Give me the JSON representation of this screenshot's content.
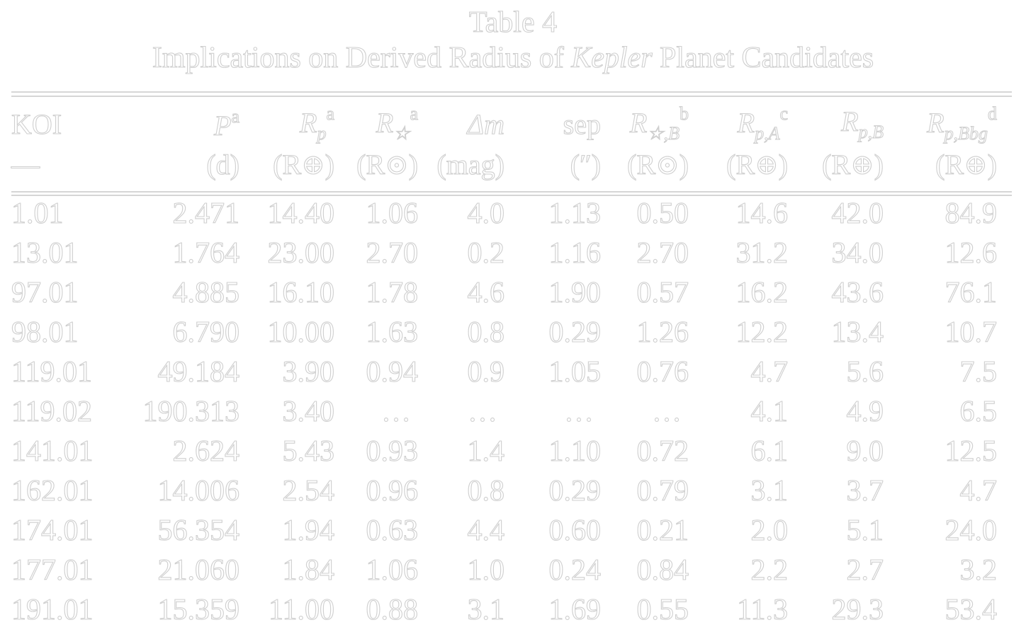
{
  "title": "Table 4",
  "subtitle_pre": "Implications on Derived Radius of ",
  "subtitle_italic": "Kepler",
  "subtitle_post": " Planet Candidates",
  "columns": [
    {
      "sym": "KOI",
      "italic": false,
      "sub": "",
      "sup": "",
      "unit": "—"
    },
    {
      "sym": "P",
      "italic": true,
      "sub": "",
      "sup": "a",
      "unit": "(d)"
    },
    {
      "sym": "R",
      "italic": true,
      "sub": "p",
      "sup": "a",
      "unit": "(R⊕)"
    },
    {
      "sym": "R",
      "italic": true,
      "sub": "☆",
      "sup": "a",
      "unit": "(R⊙)"
    },
    {
      "sym": "Δm",
      "italic": true,
      "sub": "",
      "sup": "",
      "unit": "(mag)"
    },
    {
      "sym": "sep",
      "italic": false,
      "sub": "",
      "sup": "",
      "unit": "(″)"
    },
    {
      "sym": "R",
      "italic": true,
      "sub": "☆,B",
      "sup": "b",
      "unit": "(R⊙)"
    },
    {
      "sym": "R",
      "italic": true,
      "sub": "p,A",
      "sup": "c",
      "unit": "(R⊕)"
    },
    {
      "sym": "R",
      "italic": true,
      "sub": "p,B",
      "sup": "",
      "unit": "(R⊕)"
    },
    {
      "sym": "R",
      "italic": true,
      "sub": "p,Bbg",
      "sup": "d",
      "unit": "(R⊕)"
    }
  ],
  "rows": [
    [
      "1.01",
      "2.471",
      "14.40",
      "1.06",
      "4.0",
      "1.13",
      "0.50",
      "14.6",
      "42.0",
      "84.9"
    ],
    [
      "13.01",
      "1.764",
      "23.00",
      "2.70",
      "0.2",
      "1.16",
      "2.70",
      "31.2",
      "34.0",
      "12.6"
    ],
    [
      "97.01",
      "4.885",
      "16.10",
      "1.78",
      "4.6",
      "1.90",
      "0.57",
      "16.2",
      "43.6",
      "76.1"
    ],
    [
      "98.01",
      "6.790",
      "10.00",
      "1.63",
      "0.8",
      "0.29",
      "1.26",
      "12.2",
      "13.4",
      "10.7"
    ],
    [
      "119.01",
      "49.184",
      "3.90",
      "0.94",
      "0.9",
      "1.05",
      "0.76",
      "4.7",
      "5.6",
      "7.5"
    ],
    [
      "119.02",
      "190.313",
      "3.40",
      "…",
      "…",
      "…",
      "…",
      "4.1",
      "4.9",
      "6.5"
    ],
    [
      "141.01",
      "2.624",
      "5.43",
      "0.93",
      "1.4",
      "1.10",
      "0.72",
      "6.1",
      "9.0",
      "12.5"
    ],
    [
      "162.01",
      "14.006",
      "2.54",
      "0.96",
      "0.8",
      "0.29",
      "0.79",
      "3.1",
      "3.7",
      "4.7"
    ],
    [
      "174.01",
      "56.354",
      "1.94",
      "0.63",
      "4.4",
      "0.60",
      "0.21",
      "2.0",
      "5.1",
      "24.0"
    ],
    [
      "177.01",
      "21.060",
      "1.84",
      "1.06",
      "1.0",
      "0.24",
      "0.84",
      "2.2",
      "2.7",
      "3.2"
    ],
    [
      "191.01",
      "15.359",
      "11.00",
      "0.88",
      "3.1",
      "1.69",
      "0.55",
      "11.3",
      "29.3",
      "53.4"
    ]
  ]
}
